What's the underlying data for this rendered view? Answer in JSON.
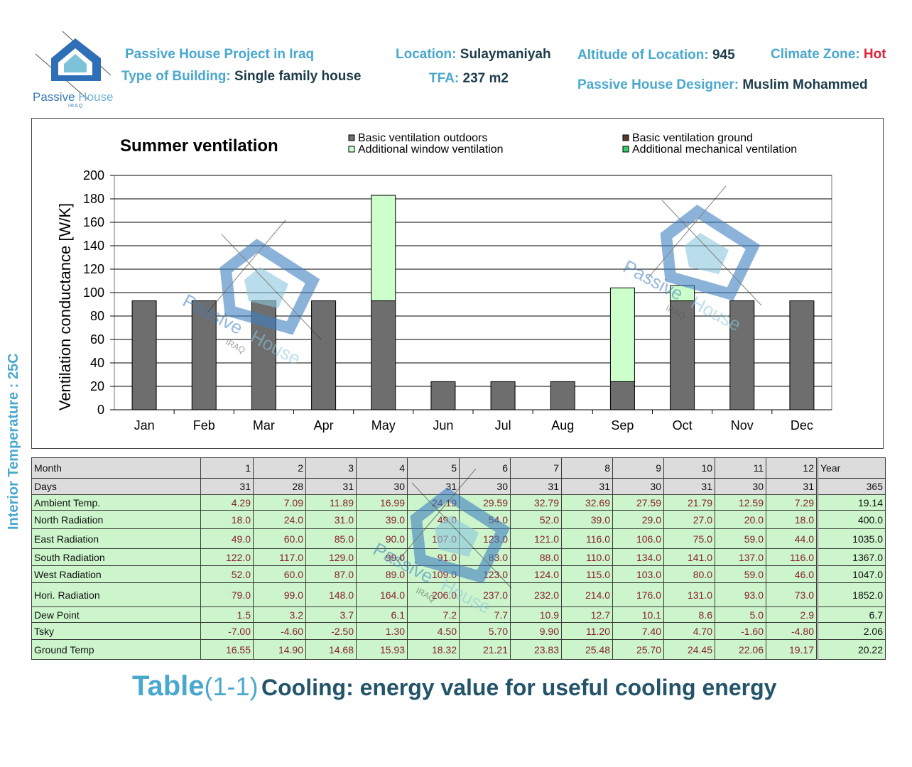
{
  "header": {
    "project": "Passive House Project in Iraq",
    "type_label": "Type of Building:",
    "type_value": "Single family house",
    "location_label": "Location:",
    "location_value": "Sulaymaniyah",
    "tfa_label": "TFA:",
    "tfa_value": "237 m2",
    "altitude_label": "Altitude of Location:",
    "altitude_value": "945",
    "climate_label": "Climate Zone:",
    "climate_value": "Hot",
    "designer_label": "Passive House Designer:",
    "designer_value": "Muslim Mohammed"
  },
  "logo": {
    "word1": "Passive",
    "word2": "House",
    "sub": "IRAQ"
  },
  "side_label": "Interior Temperature : 25C",
  "colors": {
    "basic_outdoors": "#6e6e6e",
    "basic_ground": "#5a3a28",
    "window": "#ccffcc",
    "mechanical": "#33cc66",
    "accent": "#4aa8cf",
    "watermark": "#3f7fc0"
  },
  "chart_data": {
    "type": "bar",
    "stacked": true,
    "title": "Summer ventilation",
    "ylabel": "Ventilation conductance [W/K]",
    "xlabel": "",
    "ylim": [
      0,
      200
    ],
    "yticks": [
      0,
      20,
      40,
      60,
      80,
      100,
      120,
      140,
      160,
      180,
      200
    ],
    "grid": true,
    "legend": "top",
    "categories": [
      "Jan",
      "Feb",
      "Mar",
      "Apr",
      "May",
      "Jun",
      "Jul",
      "Aug",
      "Sep",
      "Oct",
      "Nov",
      "Dec"
    ],
    "series": [
      {
        "name": "Basic ventilation outdoors",
        "values": [
          93,
          93,
          93,
          93,
          93,
          24,
          24,
          24,
          24,
          93,
          93,
          93
        ]
      },
      {
        "name": "Basic ventilation ground",
        "values": [
          0,
          0,
          0,
          0,
          0,
          0,
          0,
          0,
          0,
          0,
          0,
          0
        ]
      },
      {
        "name": "Additional window ventilation",
        "values": [
          0,
          0,
          0,
          0,
          90,
          0,
          0,
          0,
          80,
          13,
          0,
          0
        ]
      },
      {
        "name": "Additional mechanical ventilation",
        "values": [
          0,
          0,
          0,
          0,
          0,
          0,
          0,
          0,
          0,
          0,
          0,
          0
        ]
      }
    ]
  },
  "table": {
    "rows": [
      {
        "label": "Month",
        "values": [
          "1",
          "2",
          "3",
          "4",
          "5",
          "6",
          "7",
          "8",
          "9",
          "10",
          "11",
          "12"
        ],
        "year": "Year"
      },
      {
        "label": "Days",
        "values": [
          "31",
          "28",
          "31",
          "30",
          "31",
          "30",
          "31",
          "31",
          "30",
          "31",
          "30",
          "31"
        ],
        "year": "365"
      },
      {
        "label": "Ambient Temp.",
        "values": [
          "4.29",
          "7.09",
          "11.89",
          "16.99",
          "24.19",
          "29.59",
          "32.79",
          "32.69",
          "27.59",
          "21.79",
          "12.59",
          "7.29"
        ],
        "year": "19.14"
      },
      {
        "label": "North Radiation",
        "values": [
          "18.0",
          "24.0",
          "31.0",
          "39.0",
          "49.0",
          "54.0",
          "52.0",
          "39.0",
          "29.0",
          "27.0",
          "20.0",
          "18.0"
        ],
        "year": "400.0"
      },
      {
        "label": "East Radiation",
        "values": [
          "49.0",
          "60.0",
          "85.0",
          "90.0",
          "107.0",
          "123.0",
          "121.0",
          "116.0",
          "106.0",
          "75.0",
          "59.0",
          "44.0"
        ],
        "year": "1035.0"
      },
      {
        "label": "South Radiation",
        "values": [
          "122.0",
          "117.0",
          "129.0",
          "99.0",
          "91.0",
          "83.0",
          "88.0",
          "110.0",
          "134.0",
          "141.0",
          "137.0",
          "116.0"
        ],
        "year": "1367.0"
      },
      {
        "label": "West Radiation",
        "values": [
          "52.0",
          "60.0",
          "87.0",
          "89.0",
          "109.0",
          "123.0",
          "124.0",
          "115.0",
          "103.0",
          "80.0",
          "59.0",
          "46.0"
        ],
        "year": "1047.0"
      },
      {
        "label": "Hori. Radiation",
        "values": [
          "79.0",
          "99.0",
          "148.0",
          "164.0",
          "206.0",
          "237.0",
          "232.0",
          "214.0",
          "176.0",
          "131.0",
          "93.0",
          "73.0"
        ],
        "year": "1852.0"
      },
      {
        "label": "Dew Point",
        "values": [
          "1.5",
          "3.2",
          "3.7",
          "6.1",
          "7.2",
          "7.7",
          "10.9",
          "12.7",
          "10.1",
          "8.6",
          "5.0",
          "2.9"
        ],
        "year": "6.7"
      },
      {
        "label": "Tsky",
        "values": [
          "-7.00",
          "-4.60",
          "-2.50",
          "1.30",
          "4.50",
          "5.70",
          "9.90",
          "11.20",
          "7.40",
          "4.70",
          "-1.60",
          "-4.80"
        ],
        "year": "2.06"
      },
      {
        "label": "Ground Temp",
        "values": [
          "16.55",
          "14.90",
          "14.68",
          "15.93",
          "18.32",
          "21.21",
          "23.83",
          "25.48",
          "25.70",
          "24.45",
          "22.06",
          "19.17"
        ],
        "year": "20.22"
      }
    ]
  },
  "caption": {
    "part1": "Table",
    "part2": "(1-1)",
    "part3": "Cooling: energy value for useful cooling energy"
  },
  "watermark": {
    "word1": "Passive",
    "word2": "House",
    "sub": "IRAQ"
  }
}
